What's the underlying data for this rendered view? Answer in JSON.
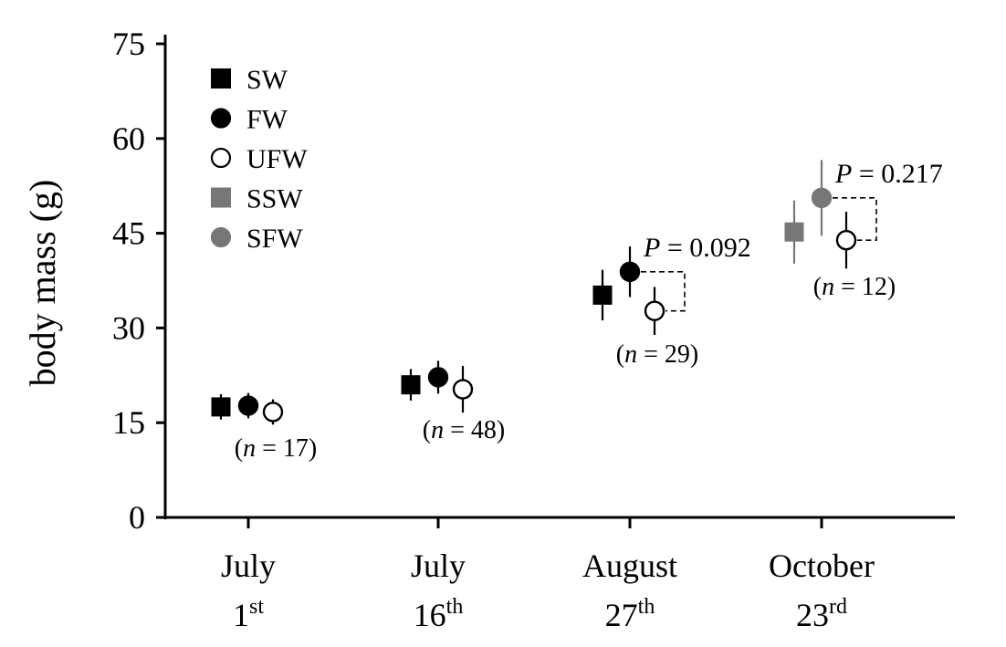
{
  "chart_data": {
    "type": "scatter",
    "ylabel": "body mass (g)",
    "ylim": [
      0,
      75
    ],
    "y_ticks": [
      "0",
      "15",
      "30",
      "45",
      "60",
      "75"
    ],
    "y_tick_values": [
      0,
      15,
      30,
      45,
      60,
      75
    ],
    "categories": [
      {
        "main": "July",
        "num": "1",
        "sup": "st"
      },
      {
        "main": "July",
        "num": "16",
        "sup": "th"
      },
      {
        "main": "August",
        "num": "27",
        "sup": "th"
      },
      {
        "main": "October",
        "num": "23",
        "sup": "rd"
      }
    ],
    "grid": false,
    "legend_position": "top-left",
    "series": [
      {
        "name": "SW",
        "marker": "square",
        "fill": "#000000",
        "stroke": "#000000",
        "points": [
          {
            "category": 0,
            "y": 17.5,
            "err": 2.0
          },
          {
            "category": 1,
            "y": 21.0,
            "err": 2.5
          },
          {
            "category": 2,
            "y": 35.2,
            "err": 4.0
          }
        ]
      },
      {
        "name": "FW",
        "marker": "circle",
        "fill": "#000000",
        "stroke": "#000000",
        "points": [
          {
            "category": 0,
            "y": 17.7,
            "err": 2.0
          },
          {
            "category": 1,
            "y": 22.2,
            "err": 2.6
          },
          {
            "category": 2,
            "y": 38.9,
            "err": 4.0
          }
        ]
      },
      {
        "name": "UFW",
        "marker": "circle",
        "fill": "#ffffff",
        "stroke": "#000000",
        "points": [
          {
            "category": 0,
            "y": 16.7,
            "err": 2.0
          },
          {
            "category": 1,
            "y": 20.3,
            "err": 3.7
          },
          {
            "category": 2,
            "y": 32.7,
            "err": 3.8
          },
          {
            "category": 3,
            "y": 43.9,
            "err": 4.5
          }
        ]
      },
      {
        "name": "SSW",
        "marker": "square",
        "fill": "#777777",
        "stroke": "#777777",
        "points": [
          {
            "category": 3,
            "y": 45.2,
            "err": 5.0
          }
        ]
      },
      {
        "name": "SFW",
        "marker": "circle",
        "fill": "#777777",
        "stroke": "#777777",
        "points": [
          {
            "category": 3,
            "y": 50.6,
            "err": 6.0
          }
        ]
      }
    ],
    "sample_sizes": [
      {
        "category": 0,
        "n": "17"
      },
      {
        "category": 1,
        "n": "48"
      },
      {
        "category": 2,
        "n": "29"
      },
      {
        "category": 3,
        "n": "12"
      }
    ],
    "comparisons": [
      {
        "category": 2,
        "p_value": "0.092"
      },
      {
        "category": 3,
        "p_value": "0.217"
      }
    ]
  }
}
